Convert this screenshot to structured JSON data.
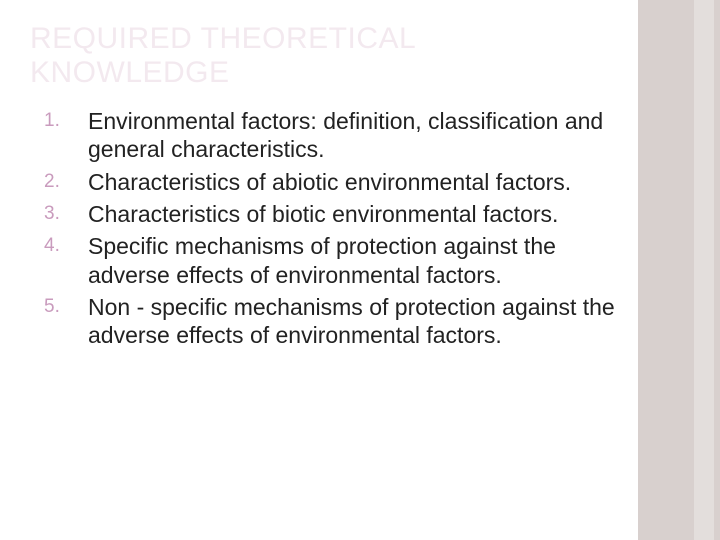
{
  "slide": {
    "title": "REQUIRED THEORETICAL KNOWLEDGE",
    "title_color": "#f3e9ef",
    "title_fontsize": 30,
    "list_fontsize": 23,
    "list_number_color": "#c99bbd",
    "list_number_fontsize": 19,
    "body_text_color": "#222222",
    "background_color": "#ffffff",
    "right_band_color": "#d8d0ce",
    "right_band_inner_color": "#e3dedc",
    "right_band_width": 82,
    "items": [
      "Environmental factors: definition, classification and general characteristics.",
      "Characteristics of abiotic environmental factors.",
      "Characteristics of biotic environmental factors.",
      "Specific mechanisms of protection against the adverse effects of environmental factors.",
      "Non - specific mechanisms of protection against the adverse effects of environmental factors."
    ]
  }
}
